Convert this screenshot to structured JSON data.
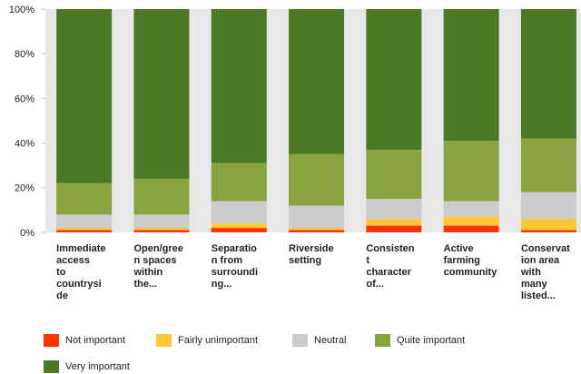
{
  "chart_data": {
    "type": "stacked_bar_100",
    "categories": [
      [
        "Immediate",
        "access",
        "to",
        "countrysi",
        "de"
      ],
      [
        "Open/gree",
        "n spaces",
        "within",
        "the..."
      ],
      [
        "Separatio",
        "n from",
        "surroundi",
        "ng..."
      ],
      [
        "Riverside",
        "setting"
      ],
      [
        "Consisten",
        "t",
        "character",
        "of..."
      ],
      [
        "Active",
        "farming",
        "community"
      ],
      [
        "Conservat",
        "ion area",
        "with",
        "many",
        "listed..."
      ]
    ],
    "series": [
      {
        "name": "Not important",
        "color": "#ff3300",
        "values": [
          1,
          1,
          2,
          1,
          3,
          3,
          1
        ]
      },
      {
        "name": "Fairly unimportant",
        "color": "#ffc733",
        "values": [
          1,
          1,
          2,
          1,
          3,
          4,
          5
        ]
      },
      {
        "name": "Neutral",
        "color": "#cccccc",
        "values": [
          6,
          6,
          10,
          10,
          9,
          7,
          12
        ]
      },
      {
        "name": "Quite important",
        "color": "#88a33f",
        "values": [
          14,
          16,
          17,
          23,
          22,
          27,
          24
        ]
      },
      {
        "name": "Very important",
        "color": "#4b7a26",
        "values": [
          78,
          76,
          69,
          65,
          63,
          59,
          58
        ]
      }
    ],
    "ylim": [
      0,
      100
    ],
    "yticks": [
      {
        "value": 0,
        "label": "0%"
      },
      {
        "value": 20,
        "label": "20%"
      },
      {
        "value": 40,
        "label": "40%"
      },
      {
        "value": 60,
        "label": "60%"
      },
      {
        "value": 80,
        "label": "80%"
      },
      {
        "value": 100,
        "label": "100%"
      }
    ]
  }
}
